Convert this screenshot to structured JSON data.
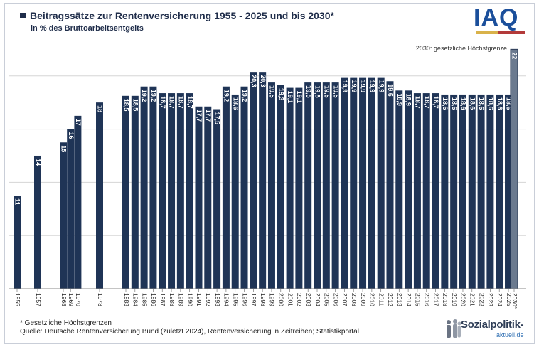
{
  "chart_data": {
    "type": "bar",
    "title": "Beitragssätze zur Rentenversicherung 1955 - 2025 und bis 2030*",
    "subtitle": "in % des Bruttoarbeitsentgelts",
    "categories": [
      "1955",
      "1957",
      "1968",
      "1969",
      "1970",
      "1973",
      "1983",
      "1984",
      "1985",
      "1986",
      "1987",
      "1988",
      "1989",
      "1990",
      "1991",
      "1992",
      "1993",
      "1994",
      "1995",
      "1996",
      "1997",
      "1998",
      "1999",
      "2000",
      "2001",
      "2002",
      "2003",
      "2004",
      "2005",
      "2006",
      "2007",
      "2008",
      "2009",
      "2010",
      "2011",
      "2012",
      "2013",
      "2014",
      "2015",
      "2016",
      "2017",
      "2018",
      "2019",
      "2020",
      "2021",
      "2022",
      "2023",
      "2024",
      "2025",
      "2030*"
    ],
    "values": [
      11,
      14,
      15,
      16,
      17,
      18,
      18.5,
      18.5,
      19.2,
      19.2,
      18.7,
      18.7,
      18.7,
      18.7,
      17.7,
      17.7,
      17.5,
      19.2,
      18.6,
      19.2,
      20.3,
      20.3,
      19.5,
      19.3,
      19.1,
      19.1,
      19.5,
      19.5,
      19.5,
      19.5,
      19.9,
      19.9,
      19.9,
      19.9,
      19.9,
      19.6,
      18.9,
      18.9,
      18.7,
      18.7,
      18.7,
      18.6,
      18.6,
      18.6,
      18.6,
      18.6,
      18.6,
      18.6,
      18.6,
      22
    ],
    "labels": [
      "11",
      "14",
      "15",
      "16",
      "17",
      "18",
      "18,5",
      "18,5",
      "19,2",
      "19,2",
      "18,7",
      "18,7",
      "18,7",
      "18,7",
      "17,7",
      "17,7",
      "17,5",
      "19,2",
      "18,6",
      "19,2",
      "20,3",
      "20,3",
      "19,5",
      "19,3",
      "19,1",
      "19,1",
      "19,5",
      "19,5",
      "19,5",
      "19,5",
      "19,9",
      "19,9",
      "19,9",
      "19,9",
      "19,9",
      "19,6",
      "18,9",
      "18,9",
      "18,7",
      "18,7",
      "18,7",
      "18,6",
      "18,6",
      "18,6",
      "18,6",
      "18,6",
      "18,6",
      "18,6",
      "18,6",
      "22"
    ],
    "highlight_category": "2030*",
    "annotation": "2030: gesetzliche Höchstgrenze",
    "ylim": [
      4,
      22.5
    ],
    "grid": true,
    "colors": {
      "bar": "#1f3456",
      "highlight": "#6b7a8f",
      "grid": "#d5d5d5"
    }
  },
  "footnote": "* Gesetzliche Höchstgrenzen",
  "source": "Quelle: Deutsche Rentenversicherung Bund (zuletzt 2024), Rentenversicherung in Zeitreihen; Statistikportal",
  "logos": {
    "iaq": "IAQ",
    "sozialpolitik": "Sozialpolitik-",
    "sozialpolitik_sub": "aktuell.de"
  }
}
